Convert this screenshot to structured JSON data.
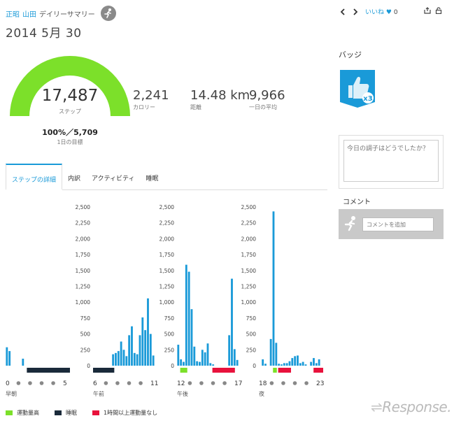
{
  "header": {
    "user_first": "正昭",
    "user_last": "山田",
    "summary_label": "デイリーサマリー",
    "date_title": "2014 5月 30"
  },
  "topbar": {
    "like_label": "いいね",
    "like_count": "0"
  },
  "gauge": {
    "steps": "17,487",
    "steps_label": "ステップ",
    "goal_pct": "100%／5,709",
    "goal_label": "1日の目標",
    "fill_fraction": 1.0,
    "color": "#7ce02a"
  },
  "stats": [
    {
      "value": "2,241",
      "label": "カロリー"
    },
    {
      "value": "14.48 km",
      "label": "距離"
    },
    {
      "value": "9,966",
      "label": "一日の平均"
    }
  ],
  "badges": {
    "title": "バッジ",
    "count_label": "x3",
    "color": "#1a9ad8"
  },
  "mood": {
    "placeholder": "今日の調子はどうでしたか？"
  },
  "comments": {
    "title": "コメント",
    "placeholder": "コメントを追加"
  },
  "tabs": [
    {
      "label": "ステップの詳細",
      "active": true
    },
    {
      "label": "内訳",
      "active": false
    },
    {
      "label": "アクティビティ",
      "active": false
    },
    {
      "label": "睡眠",
      "active": false
    }
  ],
  "chart_data": {
    "type": "bar",
    "ylim": [
      0,
      2500
    ],
    "yticks": [
      "0",
      "250",
      "500",
      "750",
      "1,000",
      "1,250",
      "1,500",
      "1,750",
      "2,000",
      "2,250",
      "2,500"
    ],
    "bar_color": "#1a9ad8",
    "panels": [
      {
        "name": "早朝",
        "start_label": "0",
        "end_label": "5",
        "values": [
          290,
          230,
          0,
          0,
          0,
          0,
          110,
          0,
          0,
          0,
          0,
          0,
          0,
          0,
          0,
          0,
          0,
          0,
          0,
          0,
          0,
          0,
          0,
          0
        ],
        "status_segments": [
          {
            "start": 0.33,
            "end": 1.0,
            "type": "sleep"
          }
        ]
      },
      {
        "name": "午前",
        "start_label": "6",
        "end_label": "11",
        "values": [
          0,
          0,
          0,
          0,
          0,
          0,
          0,
          180,
          200,
          230,
          380,
          250,
          150,
          480,
          620,
          200,
          180,
          480,
          760,
          560,
          1060,
          500,
          160,
          0
        ],
        "status_segments": [
          {
            "start": 0.0,
            "end": 0.33,
            "type": "sleep"
          }
        ]
      },
      {
        "name": "午後",
        "start_label": "12",
        "end_label": "17",
        "values": [
          330,
          100,
          60,
          1590,
          1480,
          890,
          300,
          70,
          60,
          250,
          210,
          350,
          40,
          20,
          0,
          0,
          0,
          0,
          0,
          480,
          1370,
          260,
          90,
          0
        ],
        "status_segments": [
          {
            "start": 0.05,
            "end": 0.16,
            "type": "active"
          },
          {
            "start": 0.55,
            "end": 0.9,
            "type": "inactive"
          }
        ]
      },
      {
        "name": "夜",
        "start_label": "18",
        "end_label": "23",
        "values": [
          0,
          100,
          30,
          0,
          420,
          2430,
          360,
          30,
          20,
          40,
          40,
          70,
          120,
          150,
          160,
          40,
          60,
          20,
          0,
          60,
          120,
          40,
          100,
          0
        ],
        "status_segments": [
          {
            "start": 0.22,
            "end": 0.28,
            "type": "active"
          },
          {
            "start": 0.3,
            "end": 0.5,
            "type": "inactive"
          },
          {
            "start": 0.85,
            "end": 1.0,
            "type": "inactive"
          }
        ]
      }
    ]
  },
  "legend": [
    {
      "label": "運動量高",
      "color": "#7ce02a"
    },
    {
      "label": "睡眠",
      "color": "#1a2a3a"
    },
    {
      "label": "1時間以上運動量なし",
      "color": "#e8123c"
    }
  ],
  "watermark": "Response."
}
